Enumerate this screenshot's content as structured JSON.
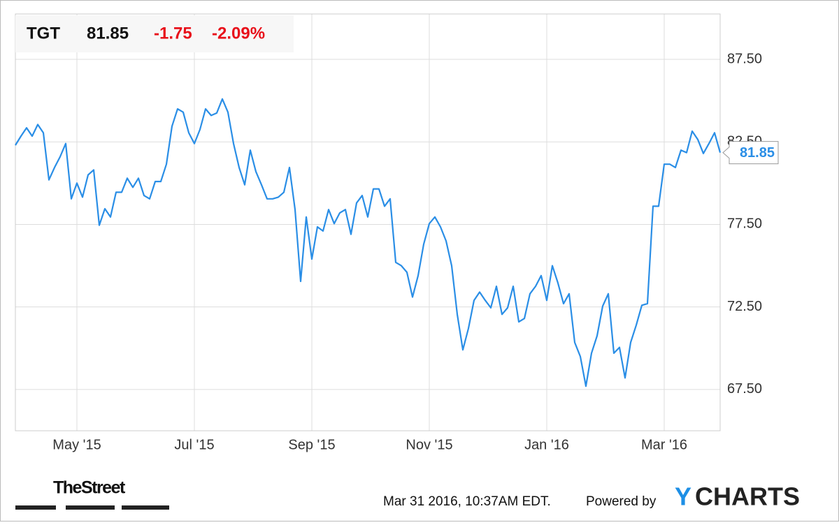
{
  "header": {
    "symbol": "TGT",
    "price": "81.85",
    "change": "-1.75",
    "change_pct": "-2.09%"
  },
  "chart_data": {
    "type": "line",
    "categories": [
      null,
      null,
      null,
      null,
      null,
      null,
      null,
      null,
      null,
      null,
      null,
      "May '15",
      null,
      null,
      null,
      null,
      null,
      null,
      null,
      null,
      null,
      null,
      null,
      null,
      null,
      null,
      null,
      null,
      null,
      null,
      null,
      null,
      "Jul '15",
      null,
      null,
      null,
      null,
      null,
      null,
      null,
      null,
      null,
      null,
      null,
      null,
      null,
      null,
      null,
      null,
      null,
      null,
      null,
      null,
      "Sep '15",
      null,
      null,
      null,
      null,
      null,
      null,
      null,
      null,
      null,
      null,
      null,
      null,
      null,
      null,
      null,
      null,
      null,
      null,
      null,
      null,
      "Nov '15",
      null,
      null,
      null,
      null,
      null,
      null,
      null,
      null,
      null,
      null,
      null,
      null,
      null,
      null,
      null,
      null,
      null,
      null,
      null,
      null,
      "Jan '16",
      null,
      null,
      null,
      null,
      null,
      null,
      null,
      null,
      null,
      null,
      null,
      null,
      null,
      null,
      null,
      null,
      null,
      null,
      null,
      null,
      "Mar '16",
      null,
      null,
      null,
      null,
      null,
      null,
      null,
      null,
      null,
      null
    ],
    "series": [
      {
        "name": "TGT",
        "color": "#2a8ee6",
        "values": [
          82.3,
          82.85,
          83.35,
          82.85,
          83.55,
          83.05,
          80.2,
          80.95,
          81.6,
          82.4,
          79.05,
          80.0,
          79.15,
          80.5,
          80.8,
          77.45,
          78.45,
          77.95,
          79.45,
          79.45,
          80.3,
          79.75,
          80.3,
          79.25,
          79.05,
          80.1,
          80.1,
          81.15,
          83.45,
          84.5,
          84.3,
          83.05,
          82.4,
          83.25,
          84.5,
          84.1,
          84.25,
          85.1,
          84.3,
          82.4,
          80.95,
          79.9,
          82.0,
          80.7,
          79.9,
          79.05,
          79.05,
          79.15,
          79.45,
          80.95,
          78.4,
          74.05,
          77.95,
          75.4,
          77.35,
          77.1,
          78.4,
          77.55,
          78.2,
          78.4,
          76.9,
          78.8,
          79.25,
          77.95,
          79.65,
          79.65,
          78.6,
          79.05,
          75.2,
          75.0,
          74.6,
          73.1,
          74.4,
          76.3,
          77.55,
          77.95,
          77.35,
          76.5,
          75.0,
          72.05,
          69.9,
          71.2,
          72.9,
          73.4,
          72.9,
          72.45,
          73.75,
          72.05,
          72.45,
          73.75,
          71.6,
          71.8,
          73.3,
          73.75,
          74.4,
          72.9,
          75.0,
          73.95,
          72.7,
          73.3,
          70.35,
          69.5,
          67.7,
          69.7,
          70.75,
          72.55,
          73.3,
          69.7,
          70.05,
          68.2,
          70.35,
          71.4,
          72.6,
          72.7,
          78.6,
          78.6,
          81.15,
          81.15,
          80.95,
          82.0,
          81.85,
          83.15,
          82.65,
          81.8,
          82.4,
          83.05,
          81.85
        ]
      }
    ],
    "ylim": [
      65,
      90.25
    ],
    "yticks": [
      {
        "value": 67.5,
        "label": "67.50"
      },
      {
        "value": 72.5,
        "label": "72.50"
      },
      {
        "value": 77.5,
        "label": "77.50"
      },
      {
        "value": 82.5,
        "label": "82.50"
      },
      {
        "value": 87.5,
        "label": "87.50"
      }
    ],
    "grid": true
  },
  "footer": {
    "source": "TheStreet",
    "timestamp": "Mar 31 2016, 10:37AM EDT.",
    "powered": "Powered by",
    "logo_y": "Y",
    "logo_rest": "CHARTS"
  }
}
